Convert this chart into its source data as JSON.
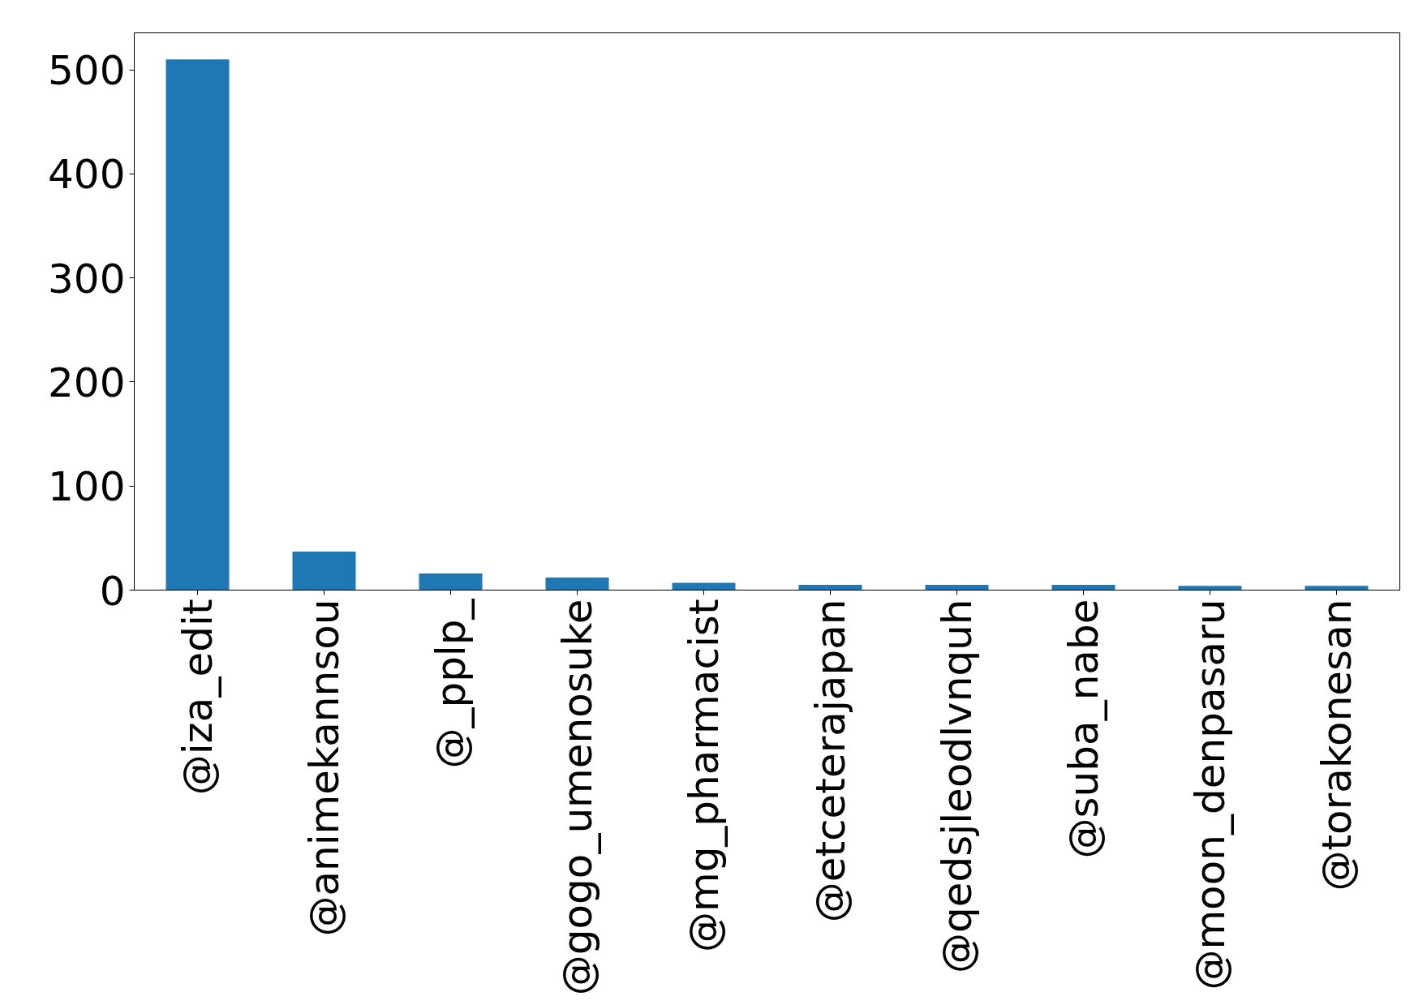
{
  "chart_data": {
    "type": "bar",
    "categories": [
      "@iza_edit",
      "@animekannsou",
      "@_pplp_",
      "@gogo_umenosuke",
      "@mg_pharmacist",
      "@etceterajapan",
      "@qedsjleodlvnquh",
      "@suba_nabe",
      "@moon_denpasaru",
      "@torakonesan"
    ],
    "values": [
      510,
      37,
      16,
      12,
      7,
      5,
      5,
      5,
      4,
      4
    ],
    "color": "#1f77b4",
    "ylim": [
      0,
      535.5
    ],
    "yticks": [
      0,
      100,
      200,
      300,
      400,
      500
    ]
  }
}
